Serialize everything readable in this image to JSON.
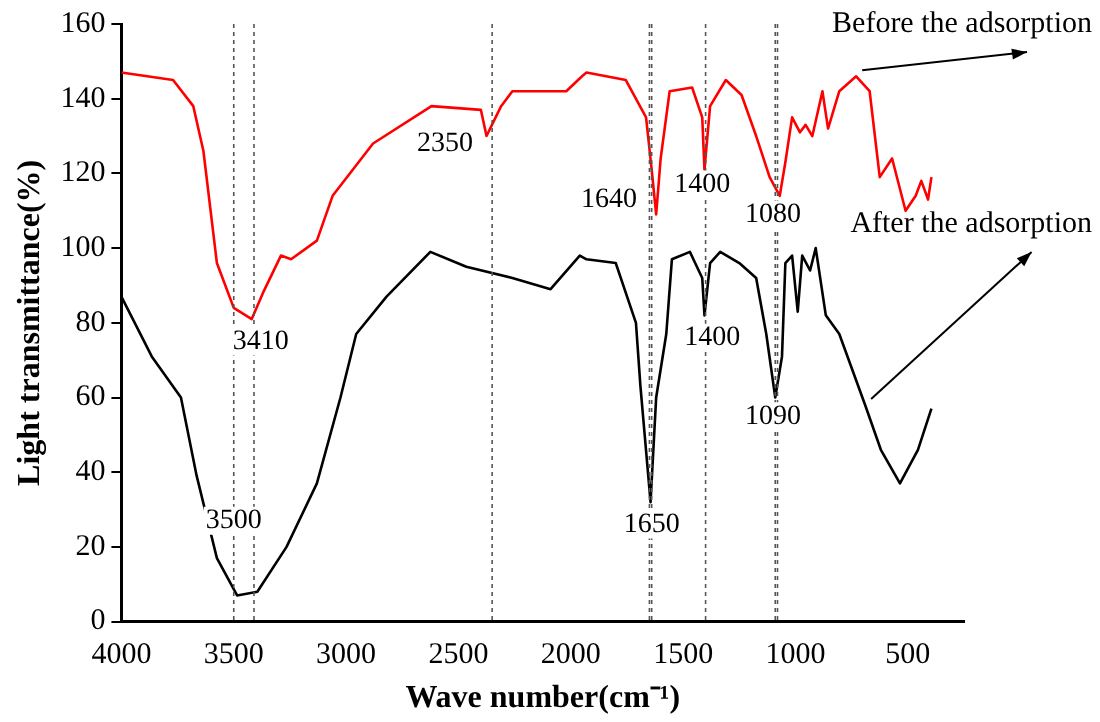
{
  "chart_data": {
    "type": "line",
    "xlabel": "Wave number(cm⁻¹)",
    "ylabel": "Light transmittance(%)",
    "xlim": [
      4000,
      250
    ],
    "xticks": [
      4000,
      3500,
      3000,
      2500,
      2000,
      1500,
      1000,
      500
    ],
    "ylim": [
      0,
      160
    ],
    "yticks": [
      0,
      20,
      40,
      60,
      80,
      100,
      120,
      140,
      160
    ],
    "grid": false,
    "legend": false,
    "marker": "none",
    "line_style": "solid",
    "series": [
      {
        "name": "Before the adsorption",
        "color": "#ff0000",
        "x": [
          4000,
          3770,
          3680,
          3635,
          3575,
          3500,
          3420,
          3370,
          3290,
          3245,
          3130,
          3060,
          2880,
          2620,
          2400,
          2375,
          2310,
          2260,
          2020,
          1950,
          1930,
          1755,
          1665,
          1640,
          1620,
          1600,
          1560,
          1460,
          1415,
          1405,
          1380,
          1310,
          1240,
          1175,
          1115,
          1070,
          1045,
          1015,
          980,
          955,
          925,
          880,
          855,
          805,
          730,
          670,
          625,
          570,
          510,
          465,
          440,
          410,
          395
        ],
        "values": [
          147,
          145,
          138,
          126,
          96,
          84,
          81,
          88,
          98,
          97,
          102,
          114,
          128,
          138,
          137,
          130,
          138,
          142,
          142,
          146,
          147,
          145,
          135,
          121,
          109,
          124,
          142,
          143,
          135,
          121,
          138,
          145,
          141,
          130,
          119,
          114,
          123,
          135,
          131,
          133,
          130,
          142,
          132,
          142,
          146,
          142,
          119,
          124,
          110,
          114,
          118,
          113,
          119
        ]
      },
      {
        "name": "After the adsorption",
        "color": "#000000",
        "x": [
          4000,
          3865,
          3735,
          3665,
          3575,
          3485,
          3395,
          3265,
          3130,
          3025,
          2955,
          2820,
          2625,
          2465,
          2260,
          2090,
          1960,
          1930,
          1800,
          1710,
          1690,
          1645,
          1620,
          1575,
          1550,
          1470,
          1415,
          1405,
          1380,
          1335,
          1250,
          1175,
          1130,
          1090,
          1060,
          1045,
          1015,
          990,
          970,
          935,
          910,
          865,
          805,
          690,
          620,
          535,
          455,
          395
        ],
        "values": [
          87,
          71,
          60,
          39,
          17,
          7,
          8,
          20,
          37,
          60,
          77,
          87,
          99,
          95,
          92,
          89,
          98,
          97,
          96,
          80,
          63,
          32,
          60,
          77,
          97,
          99,
          92,
          82,
          96,
          99,
          96,
          92,
          77,
          60,
          71,
          96,
          98,
          83,
          98,
          94,
          100,
          82,
          77,
          58,
          46,
          37,
          46,
          57
        ]
      }
    ],
    "ref_lines": [
      {
        "axis": "x",
        "value": 3410,
        "color": "#555555",
        "line_style": "dotted"
      },
      {
        "axis": "x",
        "value": 3500,
        "color": "#555555",
        "line_style": "dotted"
      },
      {
        "axis": "x",
        "value": 2350,
        "color": "#555555",
        "line_style": "dotted"
      },
      {
        "axis": "x",
        "value": 1640,
        "color": "#555555",
        "line_style": "dotted"
      },
      {
        "axis": "x",
        "value": 1650,
        "color": "#555555",
        "line_style": "dotted"
      },
      {
        "axis": "x",
        "value": 1400,
        "color": "#555555",
        "line_style": "dotted"
      },
      {
        "axis": "x",
        "value": 1080,
        "color": "#555555",
        "line_style": "dotted"
      },
      {
        "axis": "x",
        "value": 1090,
        "color": "#555555",
        "line_style": "dotted"
      }
    ],
    "annotations": [
      {
        "text": "3410",
        "x": 3380,
        "y": 75
      },
      {
        "text": "3500",
        "x": 3500,
        "y": 27
      },
      {
        "text": "2350",
        "x": 2560,
        "y": 128
      },
      {
        "text": "1640",
        "x": 1830,
        "y": 113
      },
      {
        "text": "1400",
        "x": 1415,
        "y": 117
      },
      {
        "text": "1080",
        "x": 1100,
        "y": 109
      },
      {
        "text": "1400",
        "x": 1370,
        "y": 76
      },
      {
        "text": "1090",
        "x": 1100,
        "y": 55
      },
      {
        "text": "1650",
        "x": 1640,
        "y": 26
      }
    ]
  }
}
